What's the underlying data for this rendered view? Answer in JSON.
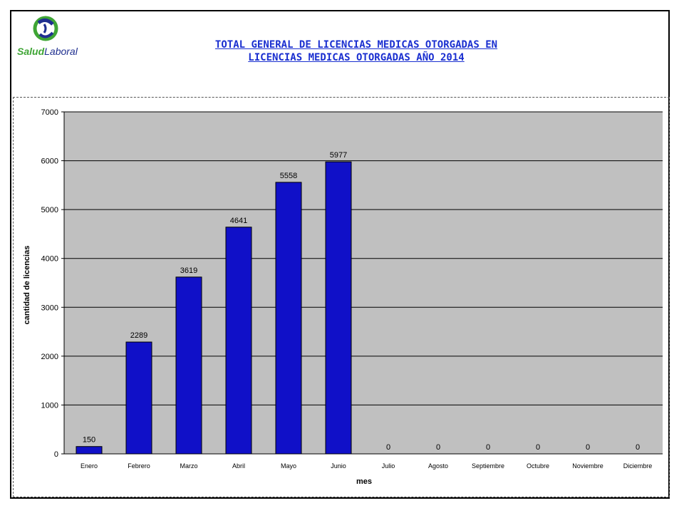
{
  "header": {
    "logo_text_green": "Salud",
    "logo_text_blue": "Laboral",
    "title_line1": "TOTAL GENERAL DE LICENCIAS MEDICAS OTORGADAS EN",
    "title_line2": "LICENCIAS MEDICAS OTORGADAS AÑO 2014"
  },
  "chart_data": {
    "type": "bar",
    "categories": [
      "Enero",
      "Febrero",
      "Marzo",
      "Abril",
      "Mayo",
      "Junio",
      "Julio",
      "Agosto",
      "Septiembre",
      "Octubre",
      "Noviembre",
      "Diciembre"
    ],
    "values": [
      150,
      2289,
      3619,
      4641,
      5558,
      5977,
      0,
      0,
      0,
      0,
      0,
      0
    ],
    "data_labels": [
      "150",
      "2289",
      "3619",
      "4641",
      "5558",
      "5977",
      "0",
      "0",
      "0",
      "0",
      "0",
      "0"
    ],
    "xlabel": "mes",
    "ylabel": "cantidad de licencias",
    "ylim": [
      0,
      7000
    ],
    "yticks": [
      0,
      1000,
      2000,
      3000,
      4000,
      5000,
      6000,
      7000
    ],
    "grid": true,
    "bar_color": "#1010c8",
    "plot_background": "#c0c0c0"
  }
}
